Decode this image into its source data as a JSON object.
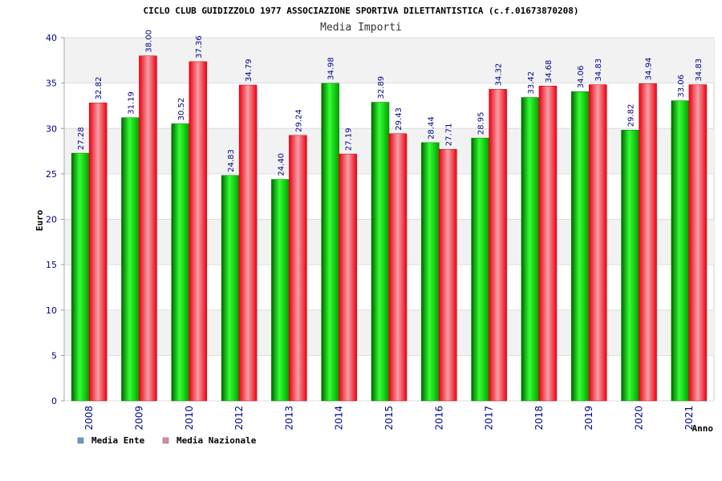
{
  "chart_data": {
    "type": "bar",
    "title": "CICLO CLUB GUIDIZZOLO 1977 ASSOCIAZIONE SPORTIVA DILETTANTISTICA (c.f.01673870208)",
    "subtitle": "Media Importi",
    "ylabel": "Euro",
    "xlabel": "Anno",
    "ylim": [
      0,
      40
    ],
    "yticks": [
      0,
      5,
      10,
      15,
      20,
      25,
      30,
      35,
      40
    ],
    "grid": true,
    "legend_position": "bottom-left",
    "categories": [
      "2008",
      "2009",
      "2010",
      "2012",
      "2013",
      "2014",
      "2015",
      "2016",
      "2017",
      "2018",
      "2019",
      "2020",
      "2021"
    ],
    "series": [
      {
        "name": "Media Ente",
        "color": "#00aa00",
        "legend_color": "#5b9bd5",
        "values": [
          27.28,
          31.19,
          30.52,
          24.83,
          24.4,
          34.98,
          32.89,
          28.44,
          28.95,
          33.42,
          34.06,
          29.82,
          33.06
        ],
        "labels": [
          "27.28",
          "31.19",
          "30.52",
          "24.83",
          "24.40",
          "34.98",
          "32.89",
          "28.44",
          "28.95",
          "33.42",
          "34.06",
          "29.82",
          "33.06"
        ]
      },
      {
        "name": "Media Nazionale",
        "color": "#ee1122",
        "legend_color": "#dd88aa",
        "values": [
          32.82,
          38.0,
          37.36,
          34.79,
          29.24,
          27.19,
          29.43,
          27.71,
          34.32,
          34.68,
          34.83,
          34.94,
          34.83
        ],
        "labels": [
          "32.82",
          "38.00",
          "37.36",
          "34.79",
          "29.24",
          "27.19",
          "29.43",
          "27.71",
          "34.32",
          "34.68",
          "34.83",
          "34.94",
          "34.83"
        ]
      }
    ]
  }
}
